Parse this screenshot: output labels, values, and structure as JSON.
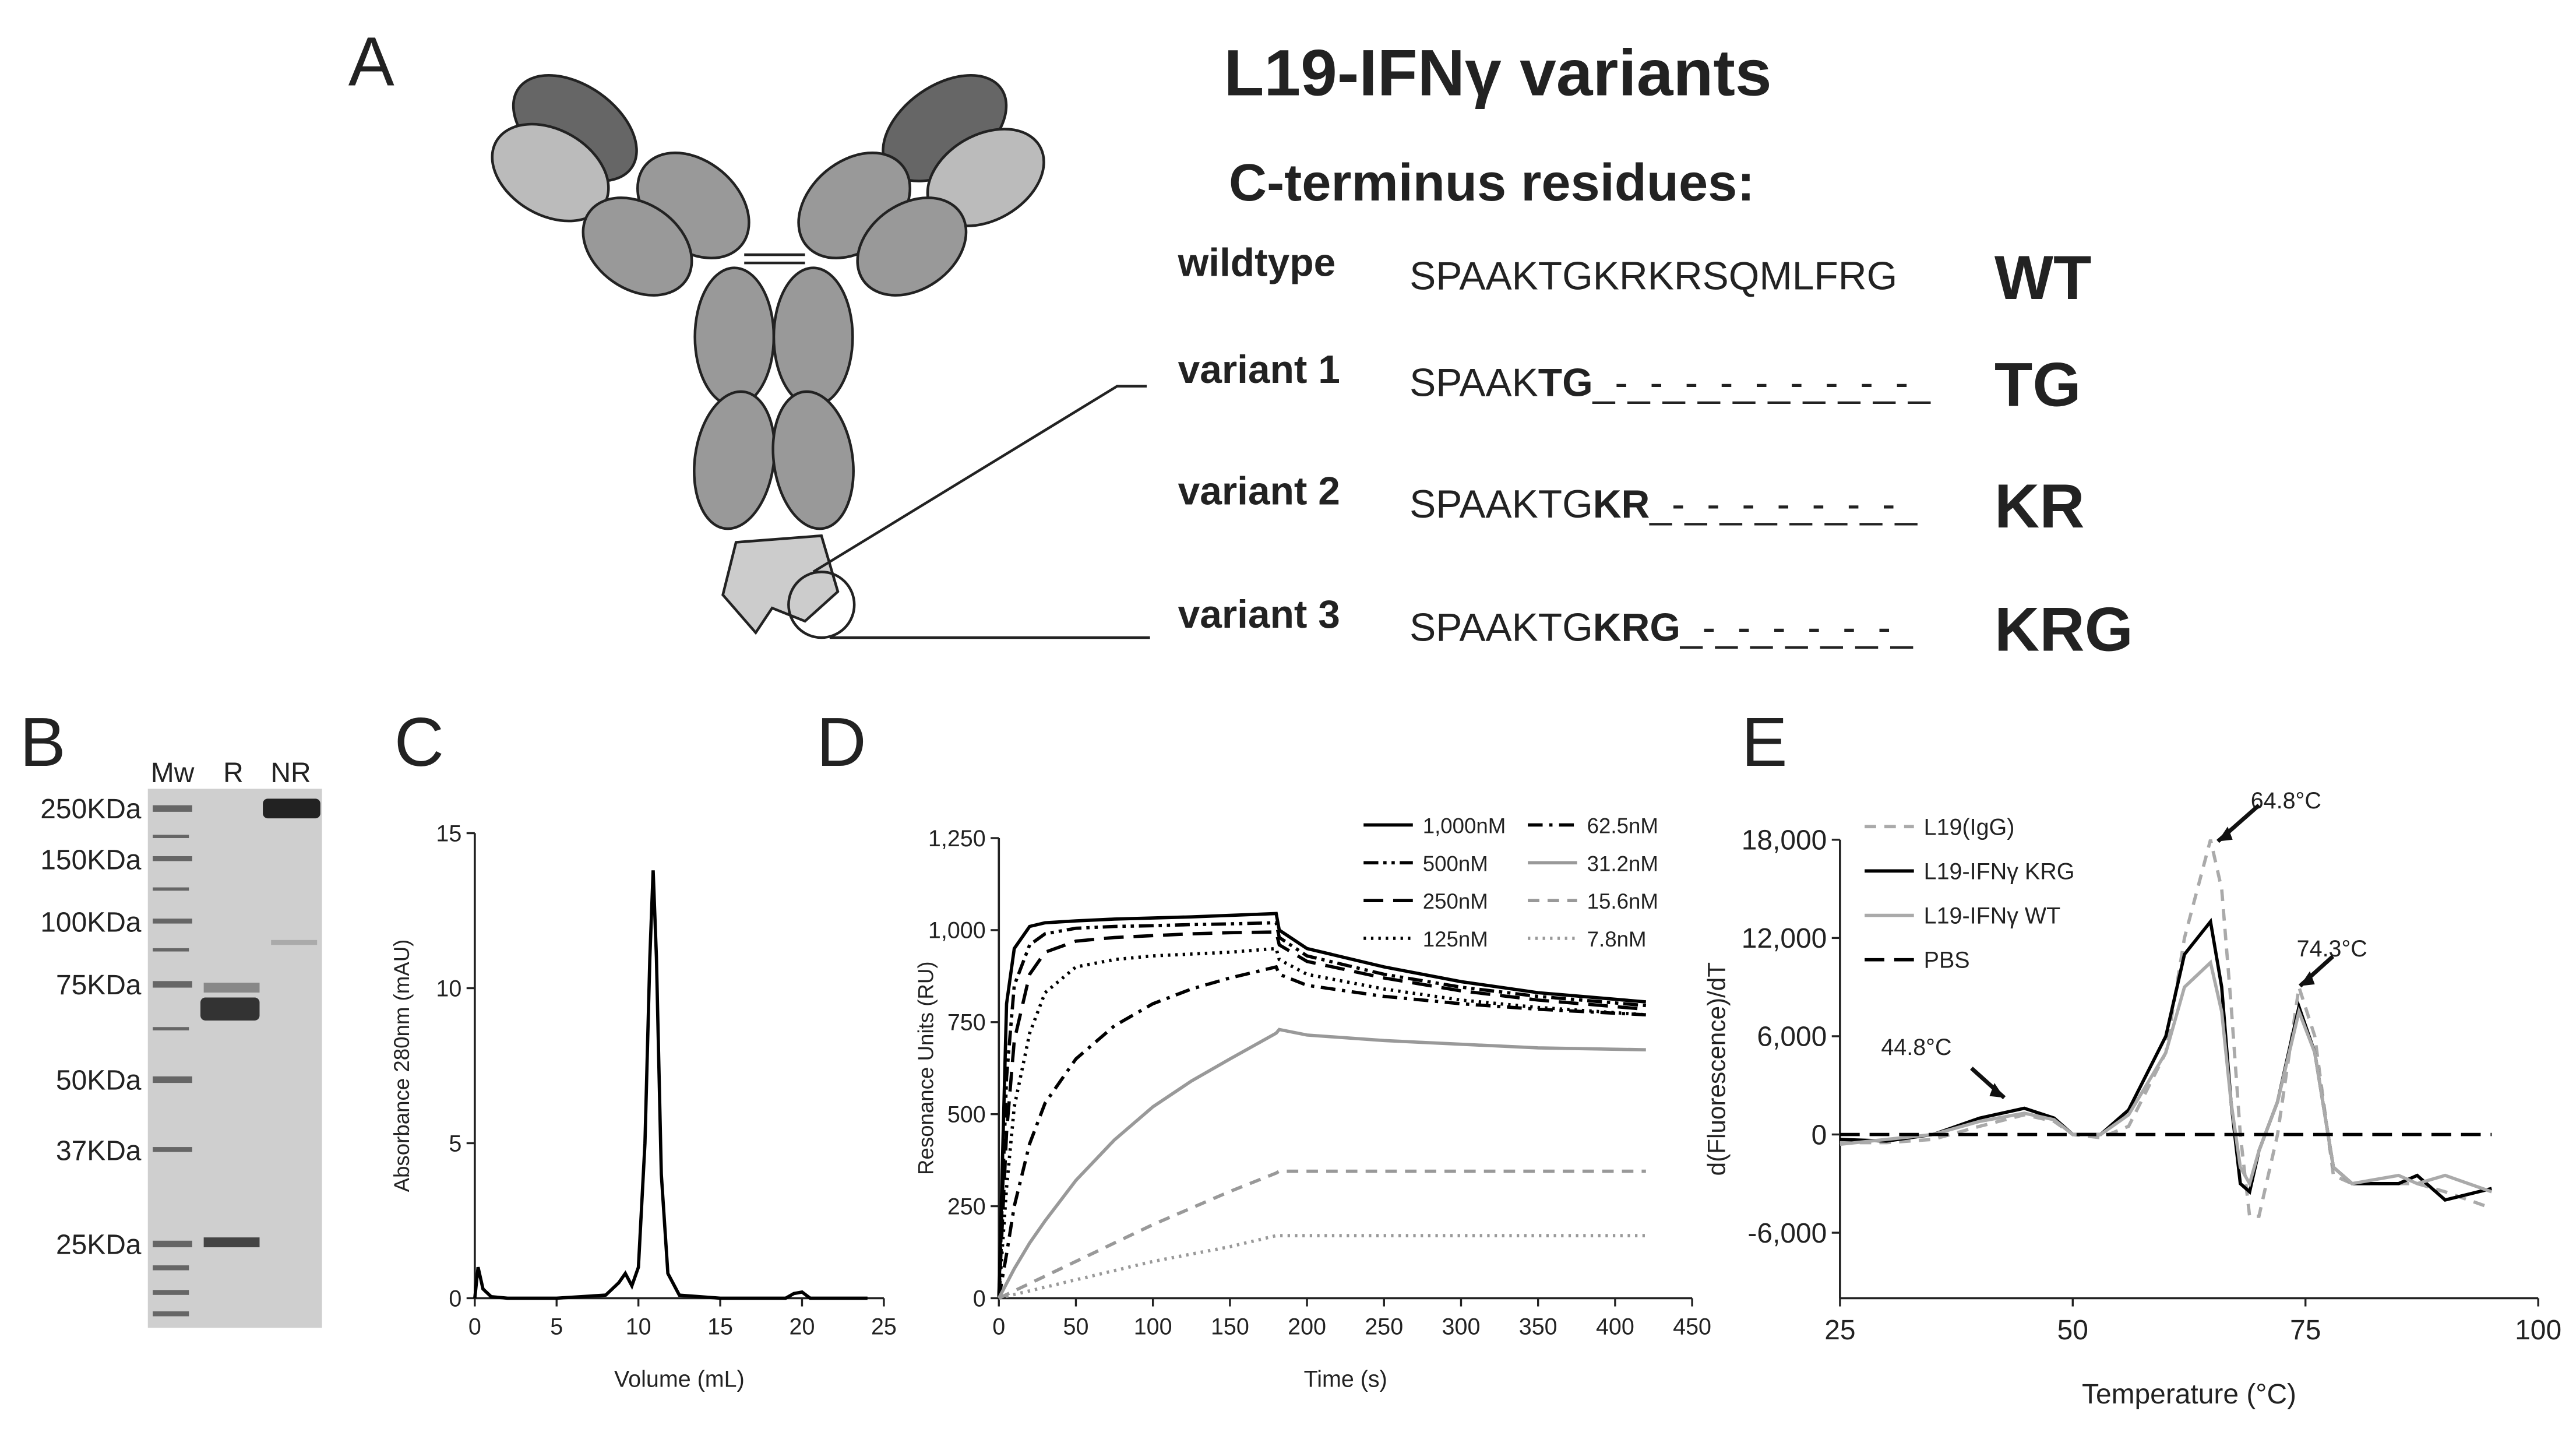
{
  "panel_a": {
    "label": "A",
    "title": "L19-IFNγ variants",
    "subtitle": "C-terminus residues:",
    "rows": [
      {
        "name": "wildtype",
        "sequence": [
          "SPAAKTGKRKRSQMLFRG"
        ],
        "bold": [],
        "tag": "WT"
      },
      {
        "name": "variant 1",
        "sequence": [
          "SPAAK",
          "TG",
          "_-_-_-_-_-_-_-_-_-_"
        ],
        "bold": [
          1
        ],
        "tag": "TG"
      },
      {
        "name": "variant 2",
        "sequence": [
          "SPAAKTG",
          "KR",
          "_-_-_-_-_-_-_-_"
        ],
        "bold": [
          1
        ],
        "tag": "KR"
      },
      {
        "name": "variant 3",
        "sequence": [
          "SPAAKTG",
          "KRG",
          "_-_-_-_-_-_-_"
        ],
        "bold": [
          1
        ],
        "tag": "KRG"
      }
    ]
  },
  "panel_b": {
    "label": "B",
    "lanes": [
      "Mw",
      "R",
      "NR"
    ],
    "markers": [
      "250KDa",
      "150KDa",
      "100KDa",
      "75KDa",
      "50KDa",
      "37KDa",
      "25KDa"
    ]
  },
  "chart_data": [
    {
      "type": "line",
      "panel_label": "C",
      "xlabel": "Volume (mL)",
      "ylabel": "Absorbance 280nm (mAU)",
      "x": [
        0,
        0.2,
        0.5,
        1,
        2,
        5,
        8,
        8.8,
        9.2,
        9.6,
        10,
        10.4,
        10.7,
        10.9,
        11.1,
        11.4,
        11.8,
        12.5,
        15,
        19,
        19.5,
        20,
        20.5,
        24
      ],
      "values": [
        0,
        1,
        0.3,
        0.05,
        0,
        0,
        0.1,
        0.5,
        0.8,
        0.4,
        1.0,
        5,
        11,
        13.8,
        11,
        4,
        0.8,
        0.1,
        0,
        0,
        0.15,
        0.2,
        0,
        0
      ],
      "color": "#000000",
      "xlim": [
        0,
        25
      ],
      "ylim": [
        0,
        15
      ],
      "xticks": [
        0,
        5,
        10,
        15,
        20,
        25
      ],
      "yticks": [
        0,
        5,
        10,
        15
      ]
    },
    {
      "type": "line",
      "panel_label": "D",
      "xlabel": "Time (s)",
      "ylabel": "Resonance Units (RU)",
      "x": [
        0,
        5,
        10,
        20,
        30,
        50,
        75,
        100,
        125,
        150,
        180,
        182,
        200,
        250,
        300,
        350,
        420
      ],
      "xlim": [
        0,
        450
      ],
      "ylim": [
        0,
        1250
      ],
      "xticks": [
        0,
        50,
        100,
        150,
        200,
        250,
        300,
        350,
        400,
        450
      ],
      "yticks": [
        0,
        250,
        500,
        750,
        {
          "value": 1000,
          "label": "1,000"
        },
        {
          "value": 1250,
          "label": "1,250"
        }
      ],
      "legend": "upper right",
      "legend_columns": 2,
      "series": [
        {
          "name": "1,000nM",
          "color": "#000000",
          "line_style": "solid",
          "values": [
            0,
            800,
            950,
            1010,
            1020,
            1025,
            1030,
            1033,
            1036,
            1040,
            1045,
            1000,
            950,
            900,
            860,
            830,
            805
          ]
        },
        {
          "name": "500nM",
          "color": "#000000",
          "line_style": "dash-dot-dot",
          "values": [
            0,
            600,
            850,
            960,
            990,
            1005,
            1010,
            1012,
            1015,
            1017,
            1020,
            980,
            930,
            880,
            845,
            820,
            795
          ]
        },
        {
          "name": "250nM",
          "color": "#000000",
          "line_style": "long-dash",
          "values": [
            0,
            450,
            700,
            880,
            940,
            970,
            980,
            985,
            990,
            993,
            995,
            960,
            915,
            870,
            835,
            810,
            785
          ]
        },
        {
          "name": "125nM",
          "color": "#000000",
          "line_style": "dotted",
          "values": [
            0,
            300,
            520,
            720,
            830,
            900,
            920,
            930,
            935,
            940,
            950,
            920,
            880,
            840,
            810,
            790,
            770
          ]
        },
        {
          "name": "62.5nM",
          "color": "#000000",
          "line_style": "dash-dot",
          "values": [
            0,
            120,
            250,
            420,
            530,
            650,
            740,
            800,
            840,
            870,
            900,
            880,
            850,
            820,
            800,
            785,
            770
          ]
        },
        {
          "name": "31.2nM",
          "color": "#999999",
          "line_style": "solid",
          "values": [
            0,
            40,
            80,
            150,
            210,
            320,
            430,
            520,
            590,
            650,
            720,
            730,
            715,
            700,
            690,
            680,
            675
          ]
        },
        {
          "name": "15.6nM",
          "color": "#999999",
          "line_style": "dashed",
          "values": [
            0,
            10,
            20,
            40,
            60,
            100,
            150,
            200,
            245,
            290,
            340,
            345,
            345,
            345,
            345,
            345,
            345
          ]
        },
        {
          "name": "7.8nM",
          "color": "#999999",
          "line_style": "dotted",
          "values": [
            0,
            5,
            10,
            20,
            30,
            50,
            75,
            100,
            120,
            140,
            170,
            170,
            170,
            170,
            170,
            170,
            170
          ]
        }
      ]
    },
    {
      "type": "line",
      "panel_label": "E",
      "xlabel": "Temperature (°C)",
      "ylabel": "d(Fluorescence)/dT",
      "x": [
        25,
        30,
        35,
        40,
        44.8,
        48,
        50,
        53,
        56,
        60,
        62,
        64.8,
        66,
        67,
        68,
        69,
        70,
        72,
        74.3,
        76,
        78,
        80,
        85,
        87,
        90,
        95
      ],
      "xlim": [
        25,
        100
      ],
      "ylim": [
        -10000,
        18000
      ],
      "xticks": [
        25,
        50,
        75,
        100
      ],
      "yticks": [
        {
          "value": -6000,
          "label": "-6,000"
        },
        0,
        {
          "value": 6000,
          "label": "6,000"
        },
        {
          "value": 12000,
          "label": "12,000"
        },
        {
          "value": 18000,
          "label": "18,000"
        }
      ],
      "legend": "upper left",
      "legend_columns": 1,
      "annotations": [
        "44.8°C",
        "64.8°C",
        "74.3°C"
      ],
      "series": [
        {
          "name": "L19(IgG)",
          "color": "#aaaaaa",
          "line_style": "dashed",
          "values": [
            -500,
            -500,
            -300,
            500,
            1200,
            800,
            0,
            -200,
            500,
            5000,
            12000,
            18000,
            15000,
            8000,
            0,
            -5000,
            -5000,
            0,
            9000,
            6000,
            -2500,
            -3000,
            -3000,
            -3000,
            -3500,
            -4500
          ]
        },
        {
          "name": "L19-IFNγ KRG",
          "color": "#000000",
          "line_style": "solid",
          "values": [
            -300,
            -400,
            0,
            1000,
            1600,
            1000,
            0,
            0,
            1500,
            6000,
            11000,
            13000,
            9000,
            2000,
            -3000,
            -3500,
            -1000,
            2000,
            7800,
            5000,
            -2000,
            -3000,
            -3000,
            -2500,
            -4000,
            -3300
          ]
        },
        {
          "name": "L19-IFNγ WT",
          "color": "#aaaaaa",
          "line_style": "solid",
          "values": [
            -600,
            -300,
            0,
            800,
            1300,
            900,
            0,
            0,
            1200,
            5000,
            9000,
            10500,
            7500,
            2000,
            -2000,
            -3000,
            -1000,
            2000,
            7500,
            5000,
            -2000,
            -3000,
            -2500,
            -3000,
            -2500,
            -3500
          ]
        },
        {
          "name": "PBS",
          "color": "#000000",
          "line_style": "long-dash",
          "values": [
            0,
            0,
            0,
            0,
            0,
            0,
            0,
            0,
            0,
            0,
            0,
            0,
            0,
            0,
            0,
            0,
            0,
            0,
            0,
            0,
            0,
            0,
            0,
            0,
            0,
            0
          ]
        }
      ]
    }
  ]
}
